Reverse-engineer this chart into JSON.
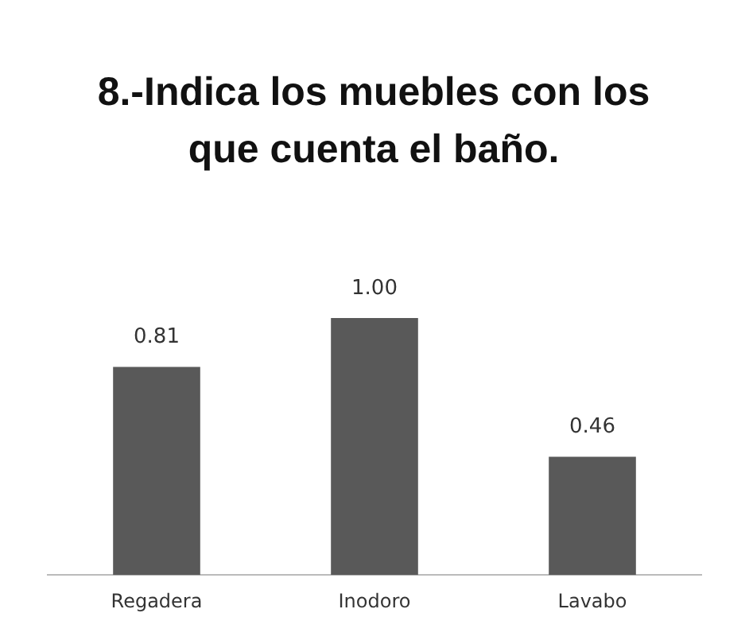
{
  "chart_data": {
    "type": "bar",
    "title": "8.-Indica los muebles con los que cuenta el baño.",
    "categories": [
      "Regadera",
      "Inodoro",
      "Lavabo"
    ],
    "values": [
      0.81,
      1.0,
      0.46
    ],
    "value_labels": [
      "0.81",
      "1.00",
      "0.46"
    ],
    "color": "#595959",
    "grid": false,
    "legend": false
  }
}
